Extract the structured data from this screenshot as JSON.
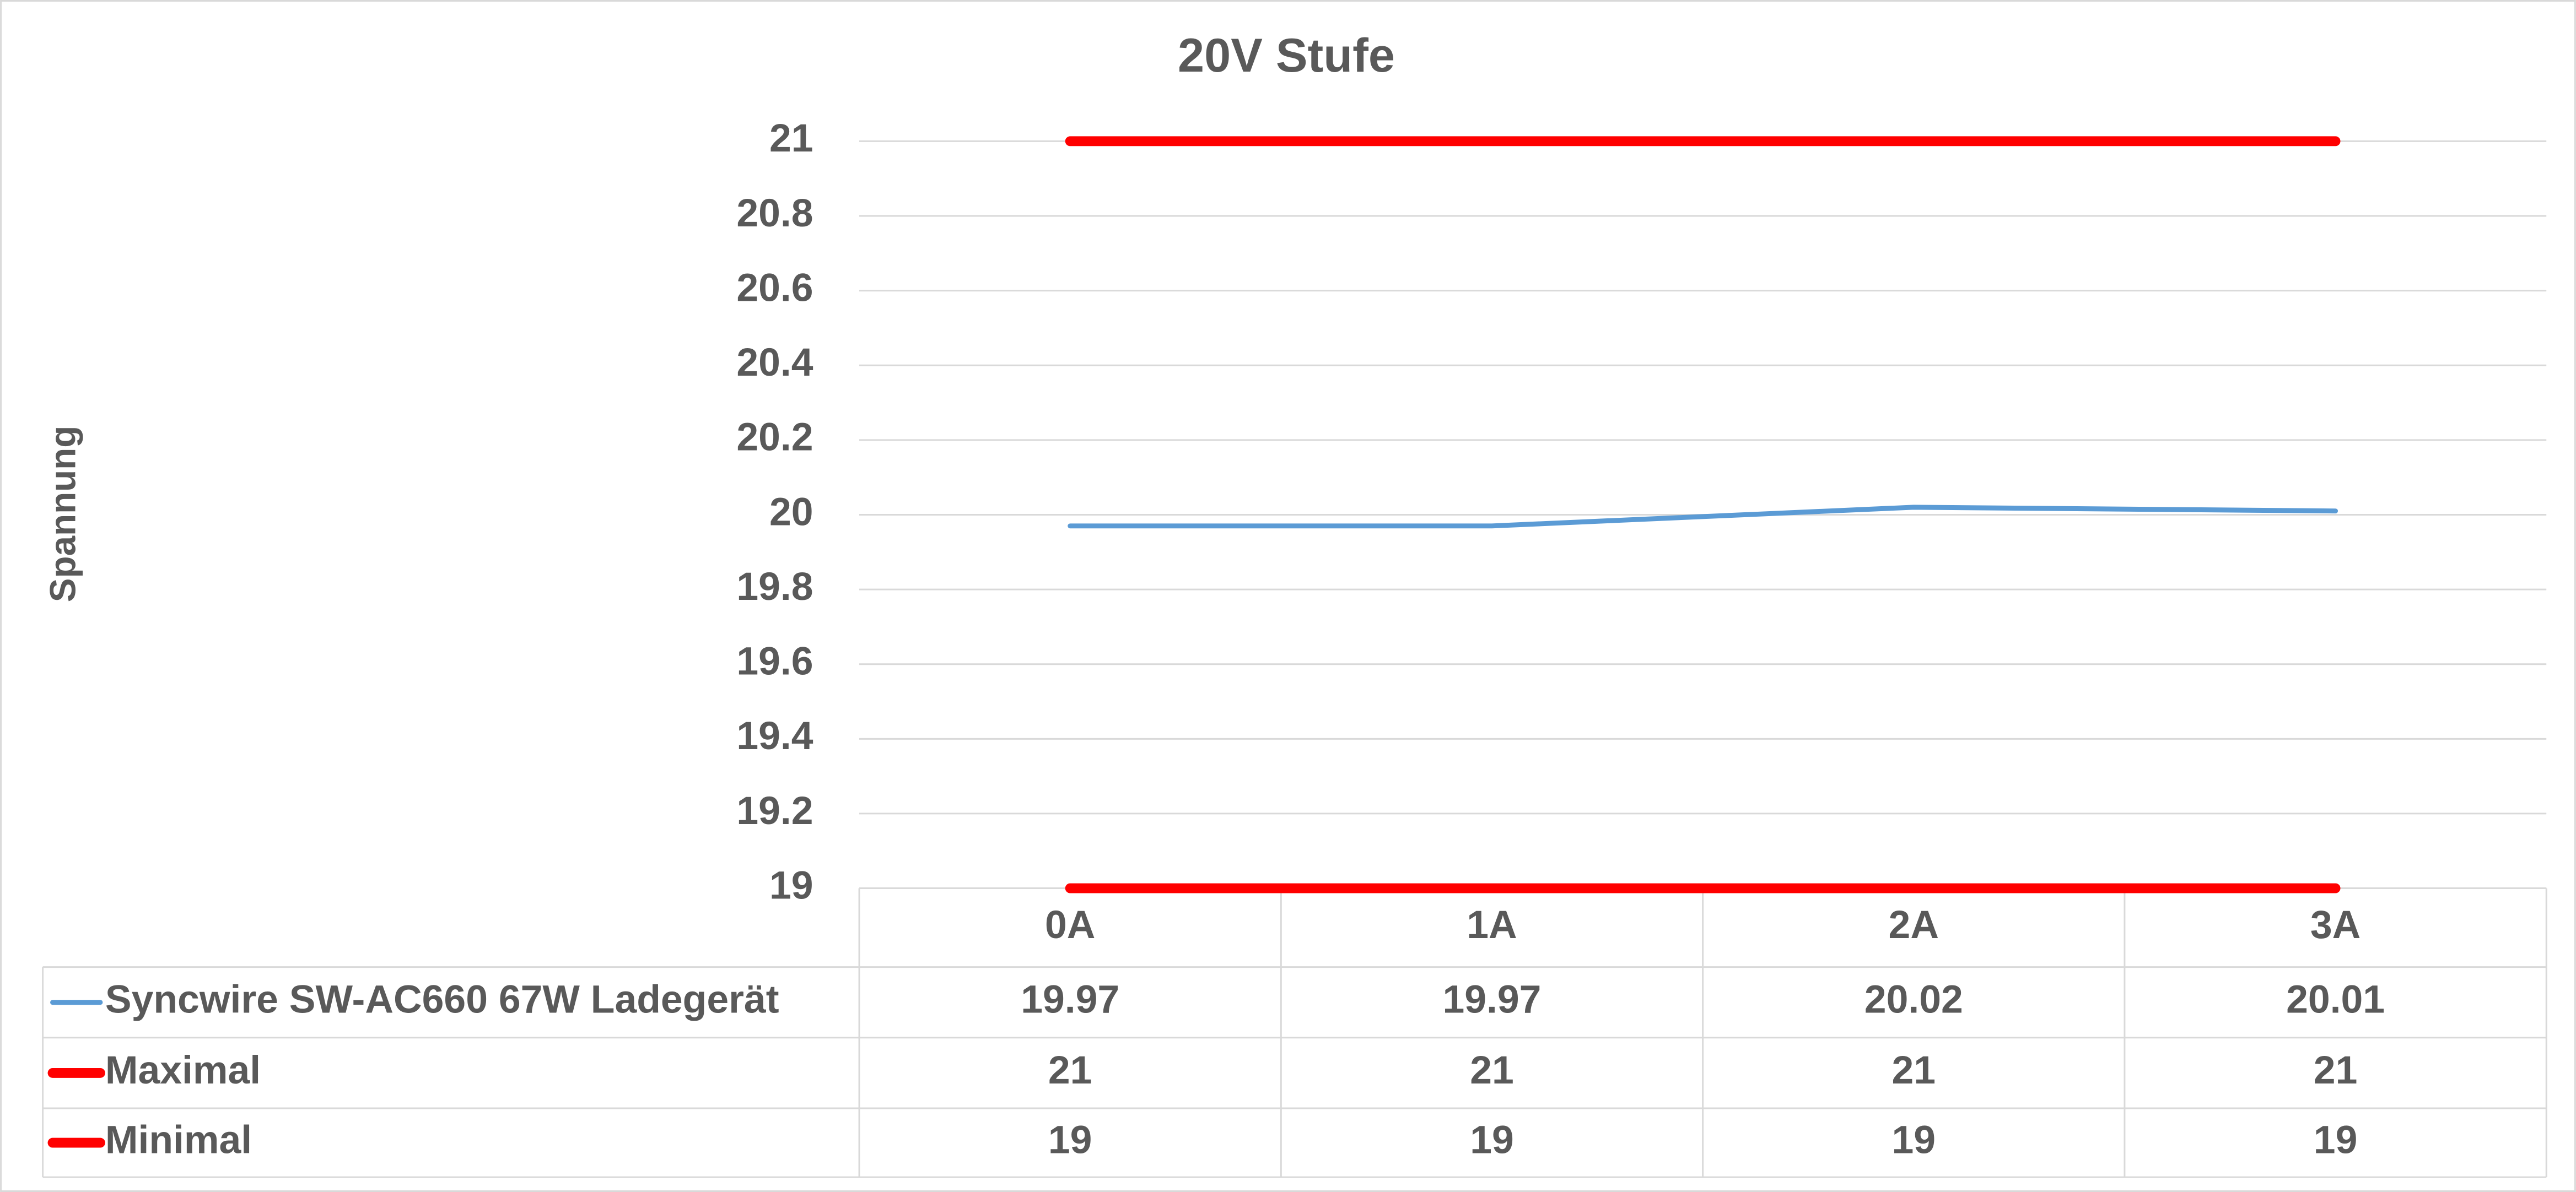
{
  "chart_data": {
    "type": "line",
    "title": "20V Stufe",
    "y_label": "Spannung",
    "categories": [
      "0A",
      "1A",
      "2A",
      "3A"
    ],
    "series": [
      {
        "name": "Syncwire SW-AC660 67W Ladegerät",
        "color": "#5b9bd5",
        "values": [
          19.97,
          19.97,
          20.02,
          20.01
        ]
      },
      {
        "name": "Maximal",
        "color": "#ff0000",
        "values": [
          21,
          21,
          21,
          21
        ]
      },
      {
        "name": "Minimal",
        "color": "#ff0000",
        "values": [
          19,
          19,
          19,
          19
        ]
      }
    ],
    "ylim": [
      19,
      21
    ],
    "yticks": [
      19,
      19.2,
      19.4,
      19.6,
      19.8,
      20,
      20.2,
      20.4,
      20.6,
      20.8,
      21
    ],
    "grid": true,
    "data_table": true
  }
}
